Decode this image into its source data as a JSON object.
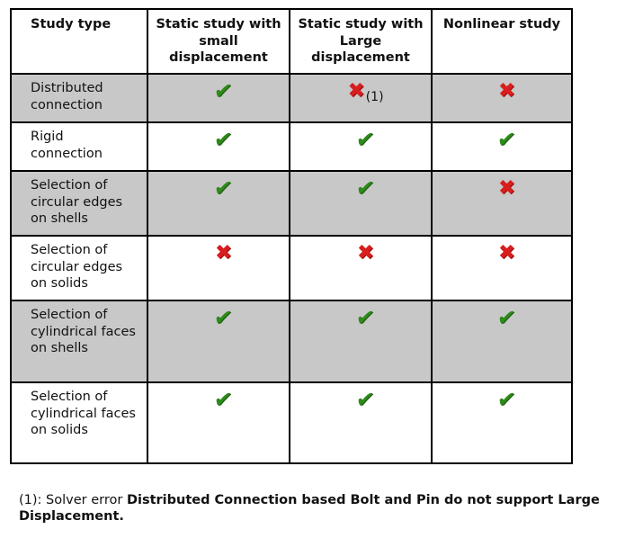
{
  "table": {
    "headers": [
      "Study type",
      "Static study with small displacement",
      "Static study with Large displacement",
      "Nonlinear study"
    ],
    "rows": [
      {
        "label": "Distributed connection",
        "cells": [
          "check",
          "cross",
          "cross"
        ],
        "notes": [
          "",
          "(1)",
          ""
        ]
      },
      {
        "label": "Rigid connection",
        "cells": [
          "check",
          "check",
          "check"
        ],
        "notes": [
          "",
          "",
          ""
        ]
      },
      {
        "label": "Selection of circular edges on shells",
        "cells": [
          "check",
          "check",
          "cross"
        ],
        "notes": [
          "",
          "",
          ""
        ]
      },
      {
        "label": "Selection of circular edges on solids",
        "cells": [
          "cross",
          "cross",
          "cross"
        ],
        "notes": [
          "",
          "",
          ""
        ]
      },
      {
        "label": "Selection of cylindrical faces on shells",
        "cells": [
          "check",
          "check",
          "check"
        ],
        "notes": [
          "",
          "",
          ""
        ]
      },
      {
        "label": "Selection of cylindrical faces on solids",
        "cells": [
          "check",
          "check",
          "check"
        ],
        "notes": [
          "",
          "",
          ""
        ]
      }
    ]
  },
  "symbols": {
    "check": "✔",
    "cross": "✖"
  },
  "colors": {
    "shaded_row": "#c8c8c8",
    "check": "#2e8b1a",
    "cross": "#d81e1e"
  },
  "footnote": {
    "prefix": "(1): Solver error ",
    "bold": "Distributed Connection based Bolt and Pin do not support Large Displacement."
  }
}
